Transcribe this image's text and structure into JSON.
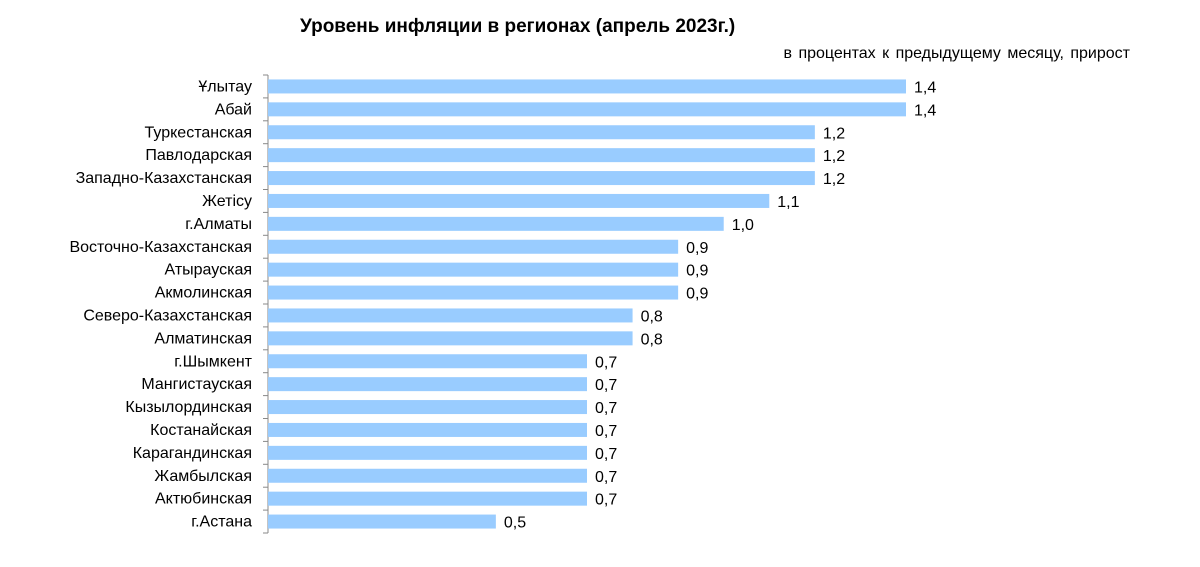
{
  "chart_data": {
    "type": "bar",
    "orientation": "horizontal",
    "title": "Уровень инфляции в регионах (апрель 2023г.)",
    "subtitle": "в процентах  к предыдущему месяцу, прирост",
    "categories": [
      "Ұлытау",
      "Абай",
      "Туркестанская",
      "Павлодарская",
      "Западно-Казахстанская",
      "Жетісу",
      "г.Алматы",
      "Восточно-Казахстанская",
      "Атырауская",
      "Акмолинская",
      "Северо-Казахстанская",
      "Алматинская",
      "г.Шымкент",
      "Мангистауская",
      "Кызылординская",
      "Костанайская",
      "Карагандинская",
      "Жамбылская",
      "Актюбинская",
      "г.Астана"
    ],
    "values": [
      1.4,
      1.4,
      1.2,
      1.2,
      1.2,
      1.1,
      1.0,
      0.9,
      0.9,
      0.9,
      0.8,
      0.8,
      0.7,
      0.7,
      0.7,
      0.7,
      0.7,
      0.7,
      0.7,
      0.5
    ],
    "value_labels": [
      "1,4",
      "1,4",
      "1,2",
      "1,2",
      "1,2",
      "1,1",
      "1,0",
      "0,9",
      "0,9",
      "0,9",
      "0,8",
      "0,8",
      "0,7",
      "0,7",
      "0,7",
      "0,7",
      "0,7",
      "0,7",
      "0,7",
      "0,5"
    ],
    "xlim": [
      0,
      1.5
    ],
    "bar_color": "#99ccff",
    "grid": false,
    "legend": "none"
  }
}
